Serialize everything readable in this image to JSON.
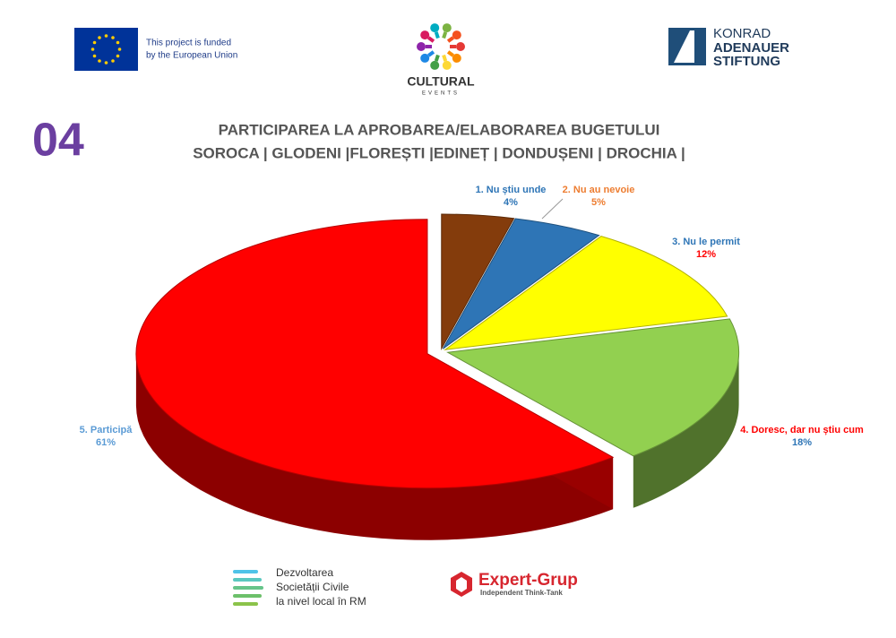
{
  "header": {
    "eu_text": [
      "This project is funded",
      "by the European Union"
    ],
    "cultural": "CULTURAL",
    "events": "EVENTS",
    "kas": [
      "KONRAD",
      "ADENAUER",
      "STIFTUNG"
    ]
  },
  "number": "04",
  "chart_data": {
    "type": "pie3d",
    "title": [
      "PARTICIPAREA LA APROBAREA/ELABORAREA BUGETULUI",
      "SOROCA | GLODENI |FLOREȘTI |EDINEȚ | DONDUȘENI | DROCHIA |"
    ],
    "categories": [
      "1. Nu știu unde",
      "2. Nu au nevoie",
      "3. Nu le permit",
      "4. Doresc, dar nu știu cum",
      "5. Participă"
    ],
    "values": [
      4,
      5,
      12,
      18,
      61
    ],
    "value_labels": [
      "4%",
      "5%",
      "12%",
      "18%",
      "61%"
    ],
    "colors": [
      "#843c0c",
      "#2e75b6",
      "#ffff00",
      "#92d050",
      "#ff0000"
    ],
    "label_colors": [
      "#2e75b6",
      "#ed7d31",
      "#2e75b6",
      "#ff0000",
      "#5b9bd5"
    ]
  },
  "footer": {
    "dsc": [
      "Dezvoltarea",
      "Societății Civile",
      "la nivel local în RM"
    ],
    "expert": "Expert-Grup",
    "expert_sub": "Independent  Think-Tank"
  }
}
